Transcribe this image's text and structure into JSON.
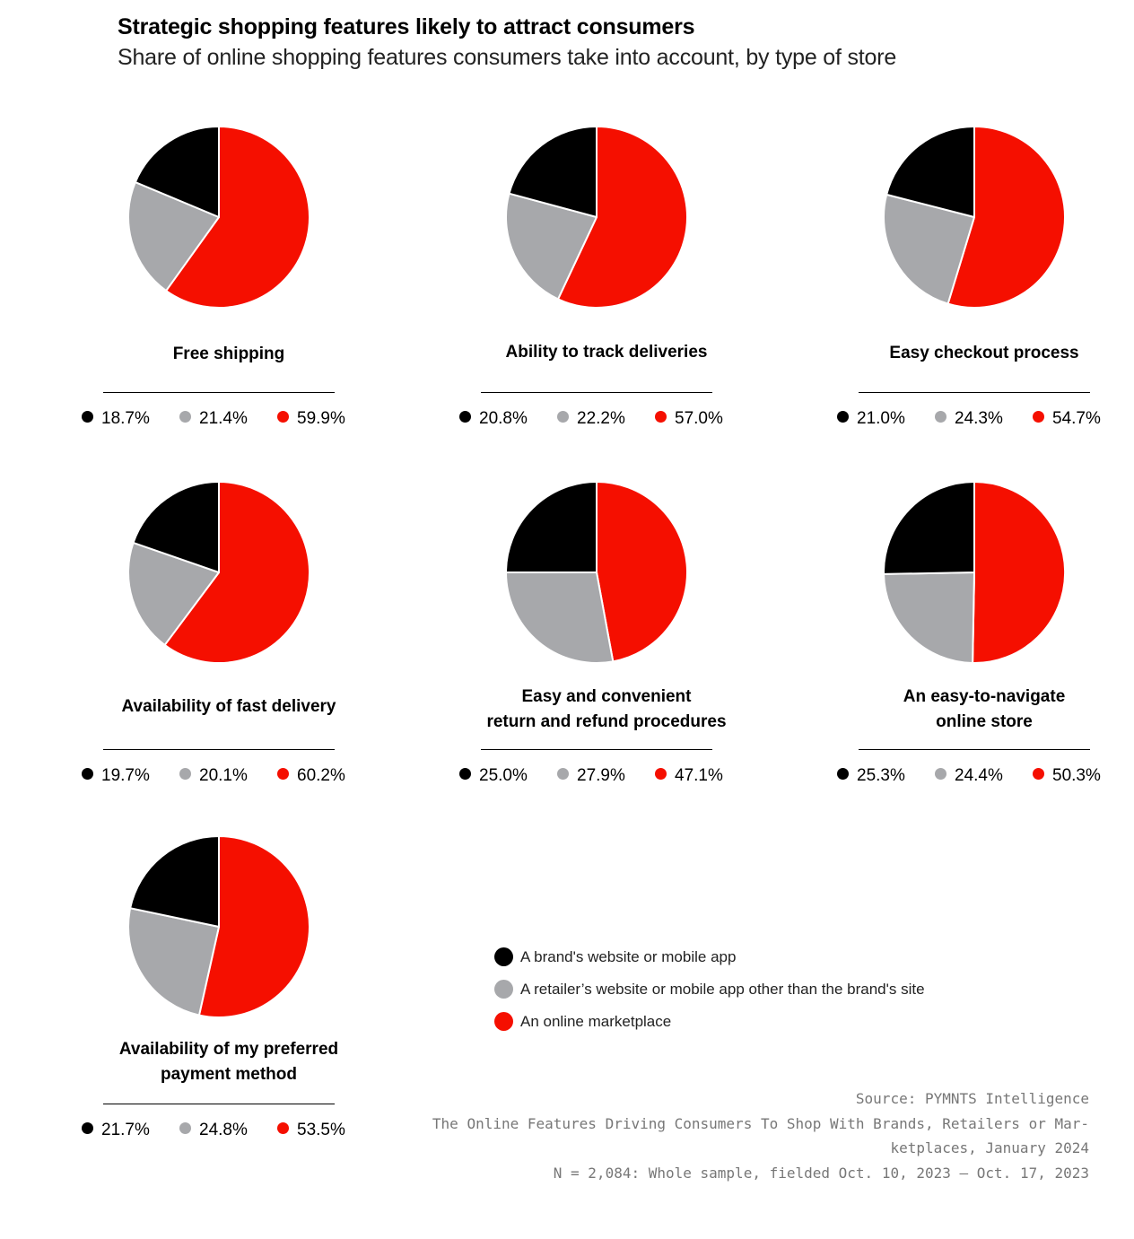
{
  "header": {
    "title": "Strategic shopping features likely to attract consumers",
    "subtitle": "Share of online shopping features consumers take into account, by type of store"
  },
  "colors": {
    "brand": "#000000",
    "retailer": "#a7a8ab",
    "marketplace": "#f50f00"
  },
  "legend": {
    "items": [
      {
        "label": "A brand's website or mobile app",
        "color": "#000000"
      },
      {
        "label": "A retailer’s website or mobile app other than the brand's site",
        "color": "#a7a8ab"
      },
      {
        "label": "An online marketplace",
        "color": "#f50f00"
      }
    ]
  },
  "chart_data": [
    {
      "type": "pie",
      "title": "Free shipping",
      "labels": [
        "18.7%",
        "21.4%",
        "59.9%"
      ],
      "values": [
        18.7,
        21.4,
        59.9
      ]
    },
    {
      "type": "pie",
      "title": "Ability to track deliveries",
      "labels": [
        "20.8%",
        "22.2%",
        "57.0%"
      ],
      "values": [
        20.8,
        22.2,
        57.0
      ]
    },
    {
      "type": "pie",
      "title": "Easy checkout process",
      "labels": [
        "21.0%",
        "24.3%",
        "54.7%"
      ],
      "values": [
        21.0,
        24.3,
        54.7
      ]
    },
    {
      "type": "pie",
      "title": "Availability of fast delivery",
      "labels": [
        "19.7%",
        "20.1%",
        "60.2%"
      ],
      "values": [
        19.7,
        20.1,
        60.2
      ]
    },
    {
      "type": "pie",
      "title_lines": [
        "Easy and convenient",
        "return and refund procedures"
      ],
      "labels": [
        "25.0%",
        "27.9%",
        "47.1%"
      ],
      "values": [
        25.0,
        27.9,
        47.1
      ]
    },
    {
      "type": "pie",
      "title_lines": [
        "An easy-to-navigate",
        "online store"
      ],
      "labels": [
        "25.3%",
        "24.4%",
        "50.3%"
      ],
      "values": [
        25.3,
        24.4,
        50.3
      ]
    },
    {
      "type": "pie",
      "title_lines": [
        "Availability of my preferred",
        "payment method"
      ],
      "labels": [
        "21.7%",
        "24.8%",
        "53.5%"
      ],
      "values": [
        21.7,
        24.8,
        53.5
      ]
    }
  ],
  "source": {
    "line1": "Source: PYMNTS Intelligence",
    "line2": "The Online Features Driving Consumers To Shop With Brands, Retailers or Mar-",
    "line3": "ketplaces, January 2024",
    "line4": "N = 2,084: Whole sample, fielded Oct. 10, 2023 – Oct. 17, 2023"
  }
}
